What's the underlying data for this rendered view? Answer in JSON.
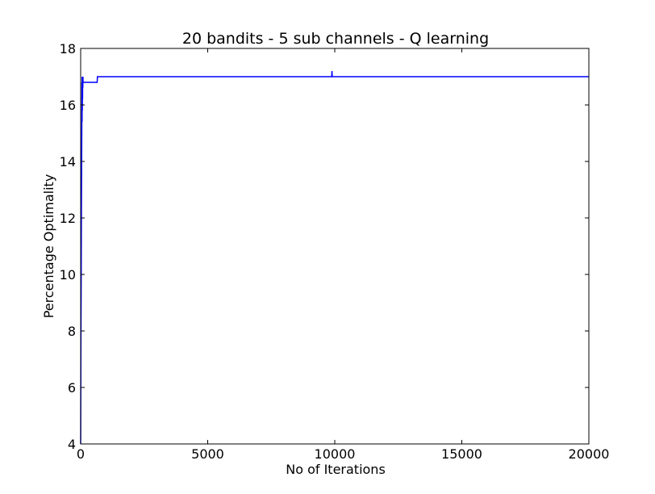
{
  "chart_data": {
    "type": "line",
    "title": "20 bandits - 5 sub channels - Q learning",
    "xlabel": "No of Iterations",
    "ylabel": "Percentage Optimality",
    "xlim": [
      0,
      20000
    ],
    "ylim": [
      4,
      18
    ],
    "xticks": [
      0,
      5000,
      10000,
      15000,
      20000
    ],
    "yticks": [
      4,
      6,
      8,
      10,
      12,
      14,
      16,
      18
    ],
    "grid": false,
    "legend": "none",
    "series": [
      {
        "color": "#0000ff",
        "x": [
          0,
          10,
          20,
          30,
          40,
          45,
          50,
          55,
          60,
          65,
          70,
          75,
          80,
          85,
          90,
          95,
          100,
          110,
          120,
          650,
          660,
          9880,
          9890,
          9900,
          20000
        ],
        "y": [
          4.0,
          7.6,
          9.6,
          12.4,
          14.2,
          15.4,
          16.8,
          15.4,
          17.0,
          15.8,
          16.9,
          16.2,
          17.0,
          16.6,
          17.0,
          16.8,
          16.8,
          16.8,
          16.8,
          16.8,
          17.0,
          17.0,
          17.2,
          17.0,
          17.0
        ]
      }
    ]
  }
}
